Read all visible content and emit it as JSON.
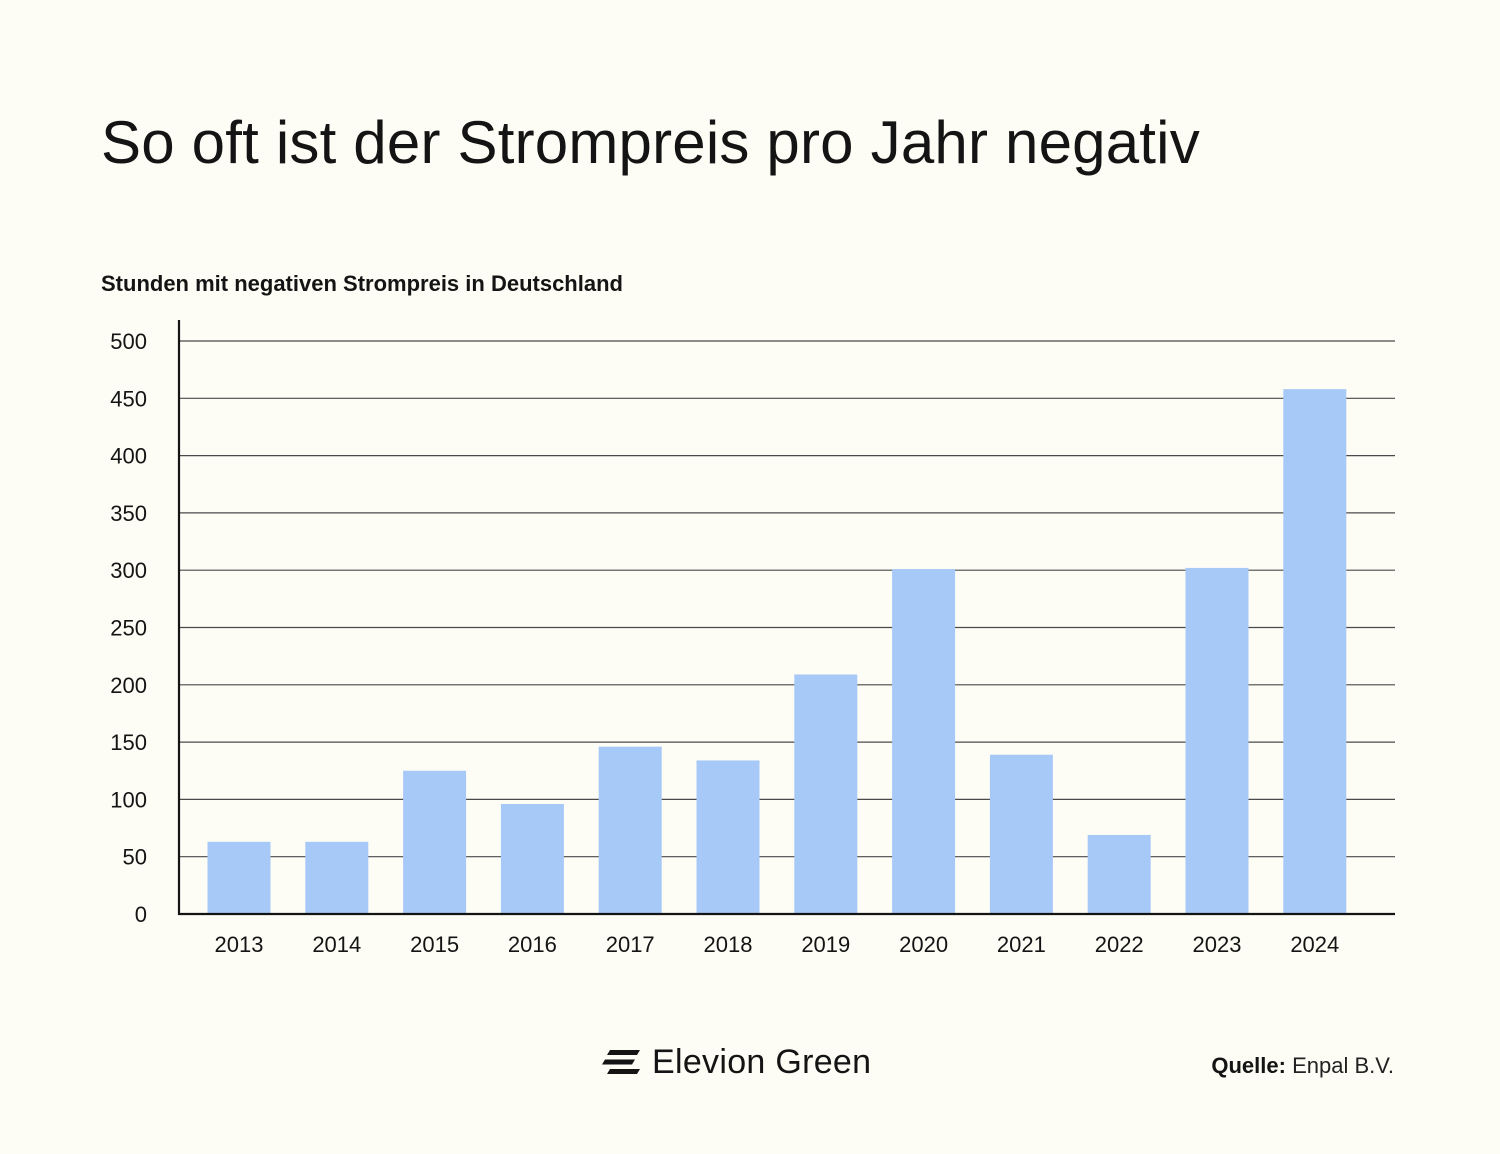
{
  "header": {
    "title": "So oft ist der Strompreis pro Jahr negativ",
    "subtitle": "Stunden mit negativen Strompreis in Deutschland"
  },
  "chart_data": {
    "type": "bar",
    "title": "So oft ist der Strompreis pro Jahr negativ",
    "ylabel": "Stunden mit negativen Strompreis in Deutschland",
    "xlabel": "",
    "categories": [
      "2013",
      "2014",
      "2015",
      "2016",
      "2017",
      "2018",
      "2019",
      "2020",
      "2021",
      "2022",
      "2023",
      "2024"
    ],
    "values": [
      63,
      63,
      125,
      96,
      146,
      134,
      209,
      301,
      139,
      69,
      302,
      458
    ],
    "ylim": [
      0,
      500
    ],
    "yticks": [
      0,
      50,
      100,
      150,
      200,
      250,
      300,
      350,
      400,
      450,
      500
    ],
    "grid": true,
    "bar_color": "#a7c9f7"
  },
  "footer": {
    "brand": "Elevion Green",
    "brand_icon": "elevion-logo-icon",
    "source_label": "Quelle:",
    "source_value": " Enpal B.V."
  },
  "colors": {
    "background": "#fdfdf6",
    "bar": "#a7c9f7",
    "text": "#141414",
    "grid": "#4a4a4a"
  }
}
